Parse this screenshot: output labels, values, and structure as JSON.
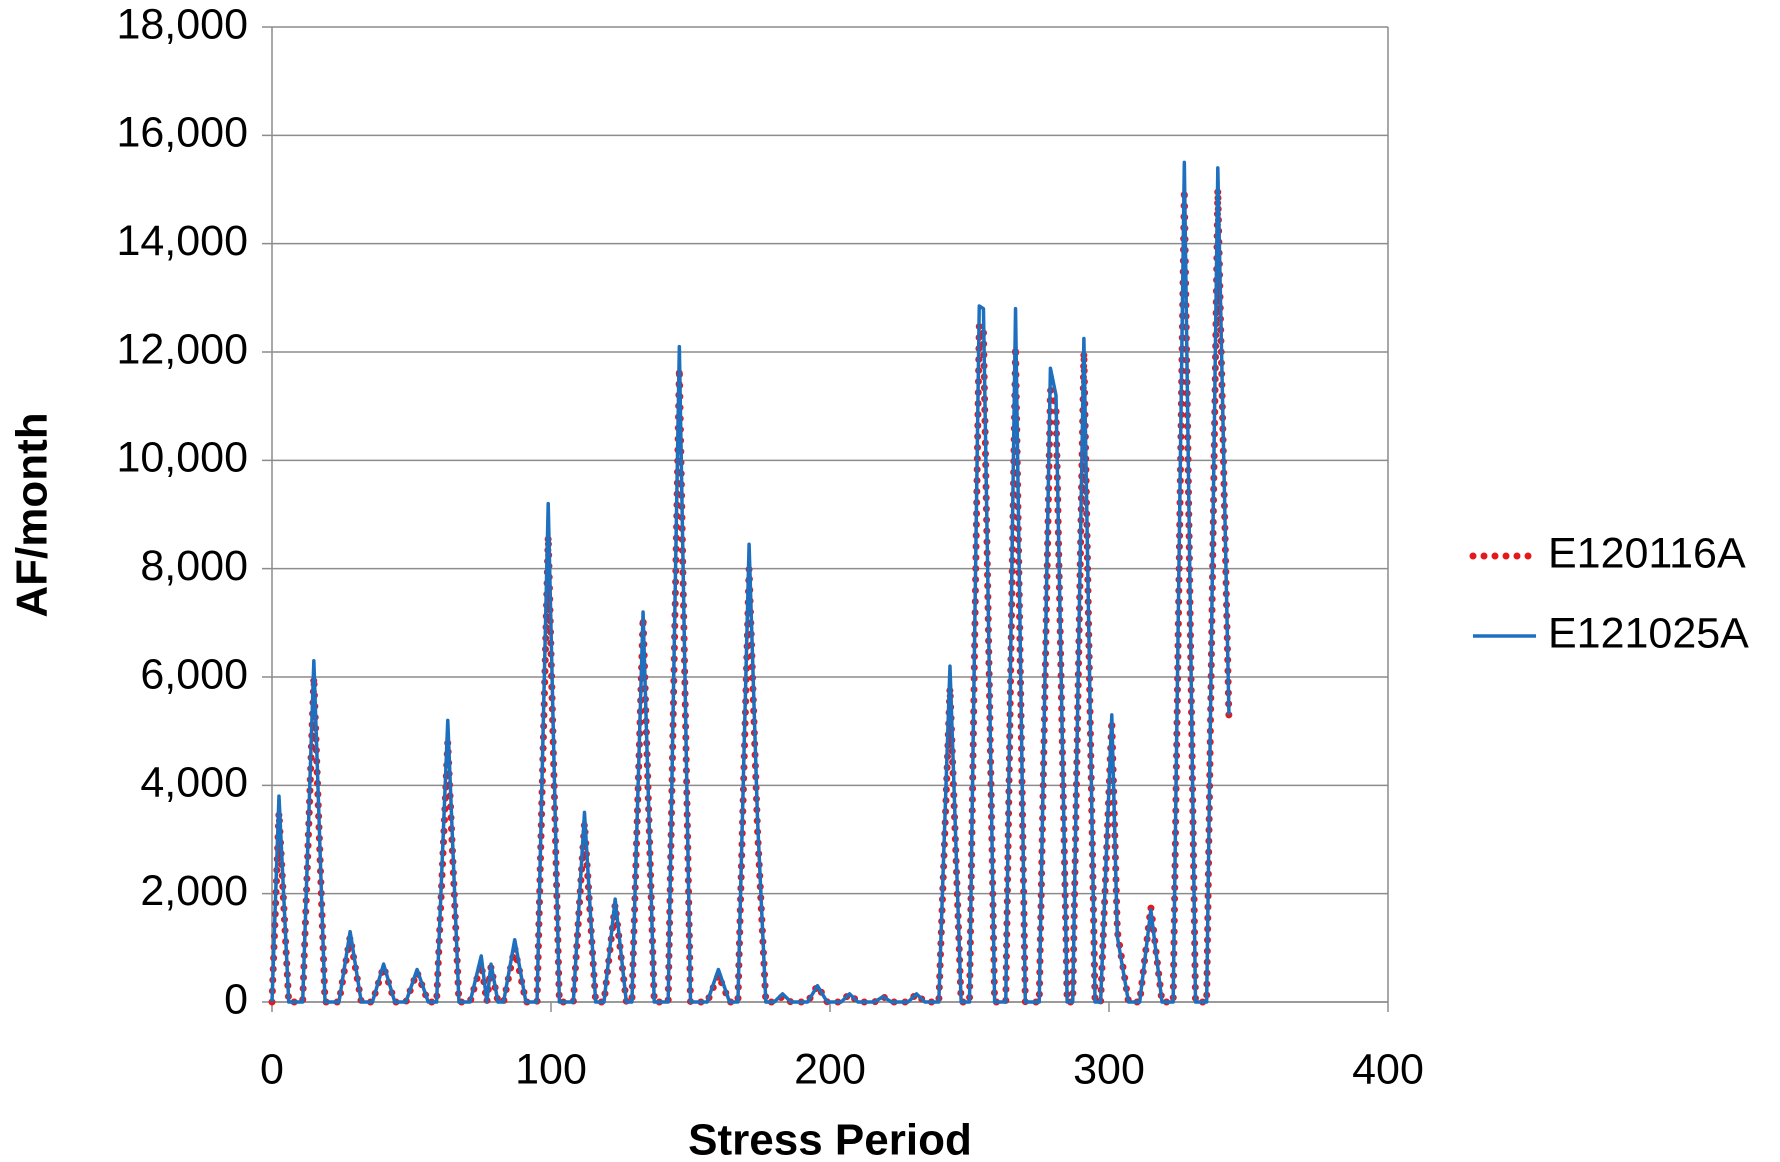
{
  "chart_data": {
    "type": "line",
    "xlabel": "Stress Period",
    "ylabel": "AF/month",
    "x": [
      0,
      2.5,
      6,
      11,
      15,
      19,
      24,
      28,
      32,
      36,
      40,
      44,
      48,
      52,
      56,
      59,
      63,
      67,
      71,
      75,
      77,
      78.5,
      81,
      83,
      87,
      91,
      95,
      99,
      103,
      108,
      112,
      116,
      119,
      123,
      127,
      129,
      133,
      137,
      142,
      146,
      150,
      156,
      160,
      164,
      167,
      171,
      174,
      177,
      180,
      183,
      186,
      192,
      195.5,
      199,
      204,
      207,
      210,
      216,
      219,
      222,
      228,
      231,
      234,
      239,
      243,
      247,
      250,
      253.5,
      255,
      259,
      263,
      266.5,
      270,
      275,
      279,
      281,
      285,
      287,
      291,
      295,
      297,
      301,
      303,
      307,
      311,
      315,
      319,
      323,
      327,
      331,
      335,
      339,
      343
    ],
    "series": [
      {
        "name": "E120116A",
        "color": "#e3191c",
        "dash": "dotted",
        "values": [
          0,
          3500,
          0,
          0,
          6000,
          0,
          0,
          1200,
          0,
          0,
          650,
          0,
          0,
          550,
          0,
          0,
          4800,
          0,
          0,
          700,
          0,
          650,
          0,
          0,
          1000,
          0,
          0,
          8600,
          0,
          0,
          3300,
          0,
          0,
          1800,
          0,
          0,
          7100,
          0,
          0,
          11700,
          0,
          0,
          500,
          0,
          0,
          8000,
          3200,
          0,
          0,
          100,
          0,
          0,
          300,
          0,
          0,
          150,
          0,
          0,
          100,
          0,
          0,
          150,
          0,
          0,
          5800,
          0,
          0,
          12500,
          12400,
          0,
          0,
          12100,
          0,
          0,
          11300,
          11000,
          0,
          0,
          12000,
          0,
          0,
          5200,
          1300,
          0,
          0,
          1750,
          0,
          0,
          15000,
          0,
          0,
          15000,
          5200
        ]
      },
      {
        "name": "E121025A",
        "color": "#1f6fbf",
        "dash": "solid",
        "values": [
          0,
          3800,
          0,
          0,
          6300,
          0,
          0,
          1300,
          0,
          0,
          700,
          0,
          0,
          600,
          0,
          0,
          5200,
          0,
          0,
          850,
          0,
          700,
          0,
          0,
          1150,
          0,
          0,
          9200,
          0,
          0,
          3500,
          0,
          0,
          1900,
          0,
          0,
          7200,
          0,
          0,
          12100,
          0,
          0,
          600,
          0,
          0,
          8450,
          3400,
          0,
          0,
          150,
          0,
          0,
          300,
          0,
          0,
          150,
          0,
          0,
          100,
          0,
          0,
          150,
          0,
          0,
          6200,
          0,
          0,
          12850,
          12800,
          0,
          0,
          12800,
          0,
          0,
          11700,
          11200,
          0,
          0,
          12250,
          0,
          0,
          5300,
          1200,
          0,
          0,
          1700,
          0,
          0,
          15500,
          0,
          0,
          15400,
          5300
        ]
      }
    ],
    "xlim": [
      0,
      400
    ],
    "xticks": [
      0,
      100,
      200,
      300,
      400
    ],
    "ylim": [
      0,
      18000
    ],
    "yticks": [
      0,
      {
        "value": 2000,
        "label": "2,000"
      },
      {
        "value": 4000,
        "label": "4,000"
      },
      {
        "value": 6000,
        "label": "6,000"
      },
      {
        "value": 8000,
        "label": "8,000"
      },
      {
        "value": 10000,
        "label": "10,000"
      },
      {
        "value": 12000,
        "label": "12,000"
      },
      {
        "value": 14000,
        "label": "14,000"
      },
      {
        "value": 16000,
        "label": "16,000"
      },
      {
        "value": 18000,
        "label": "18,000"
      }
    ],
    "grid": true,
    "legend": "right"
  }
}
